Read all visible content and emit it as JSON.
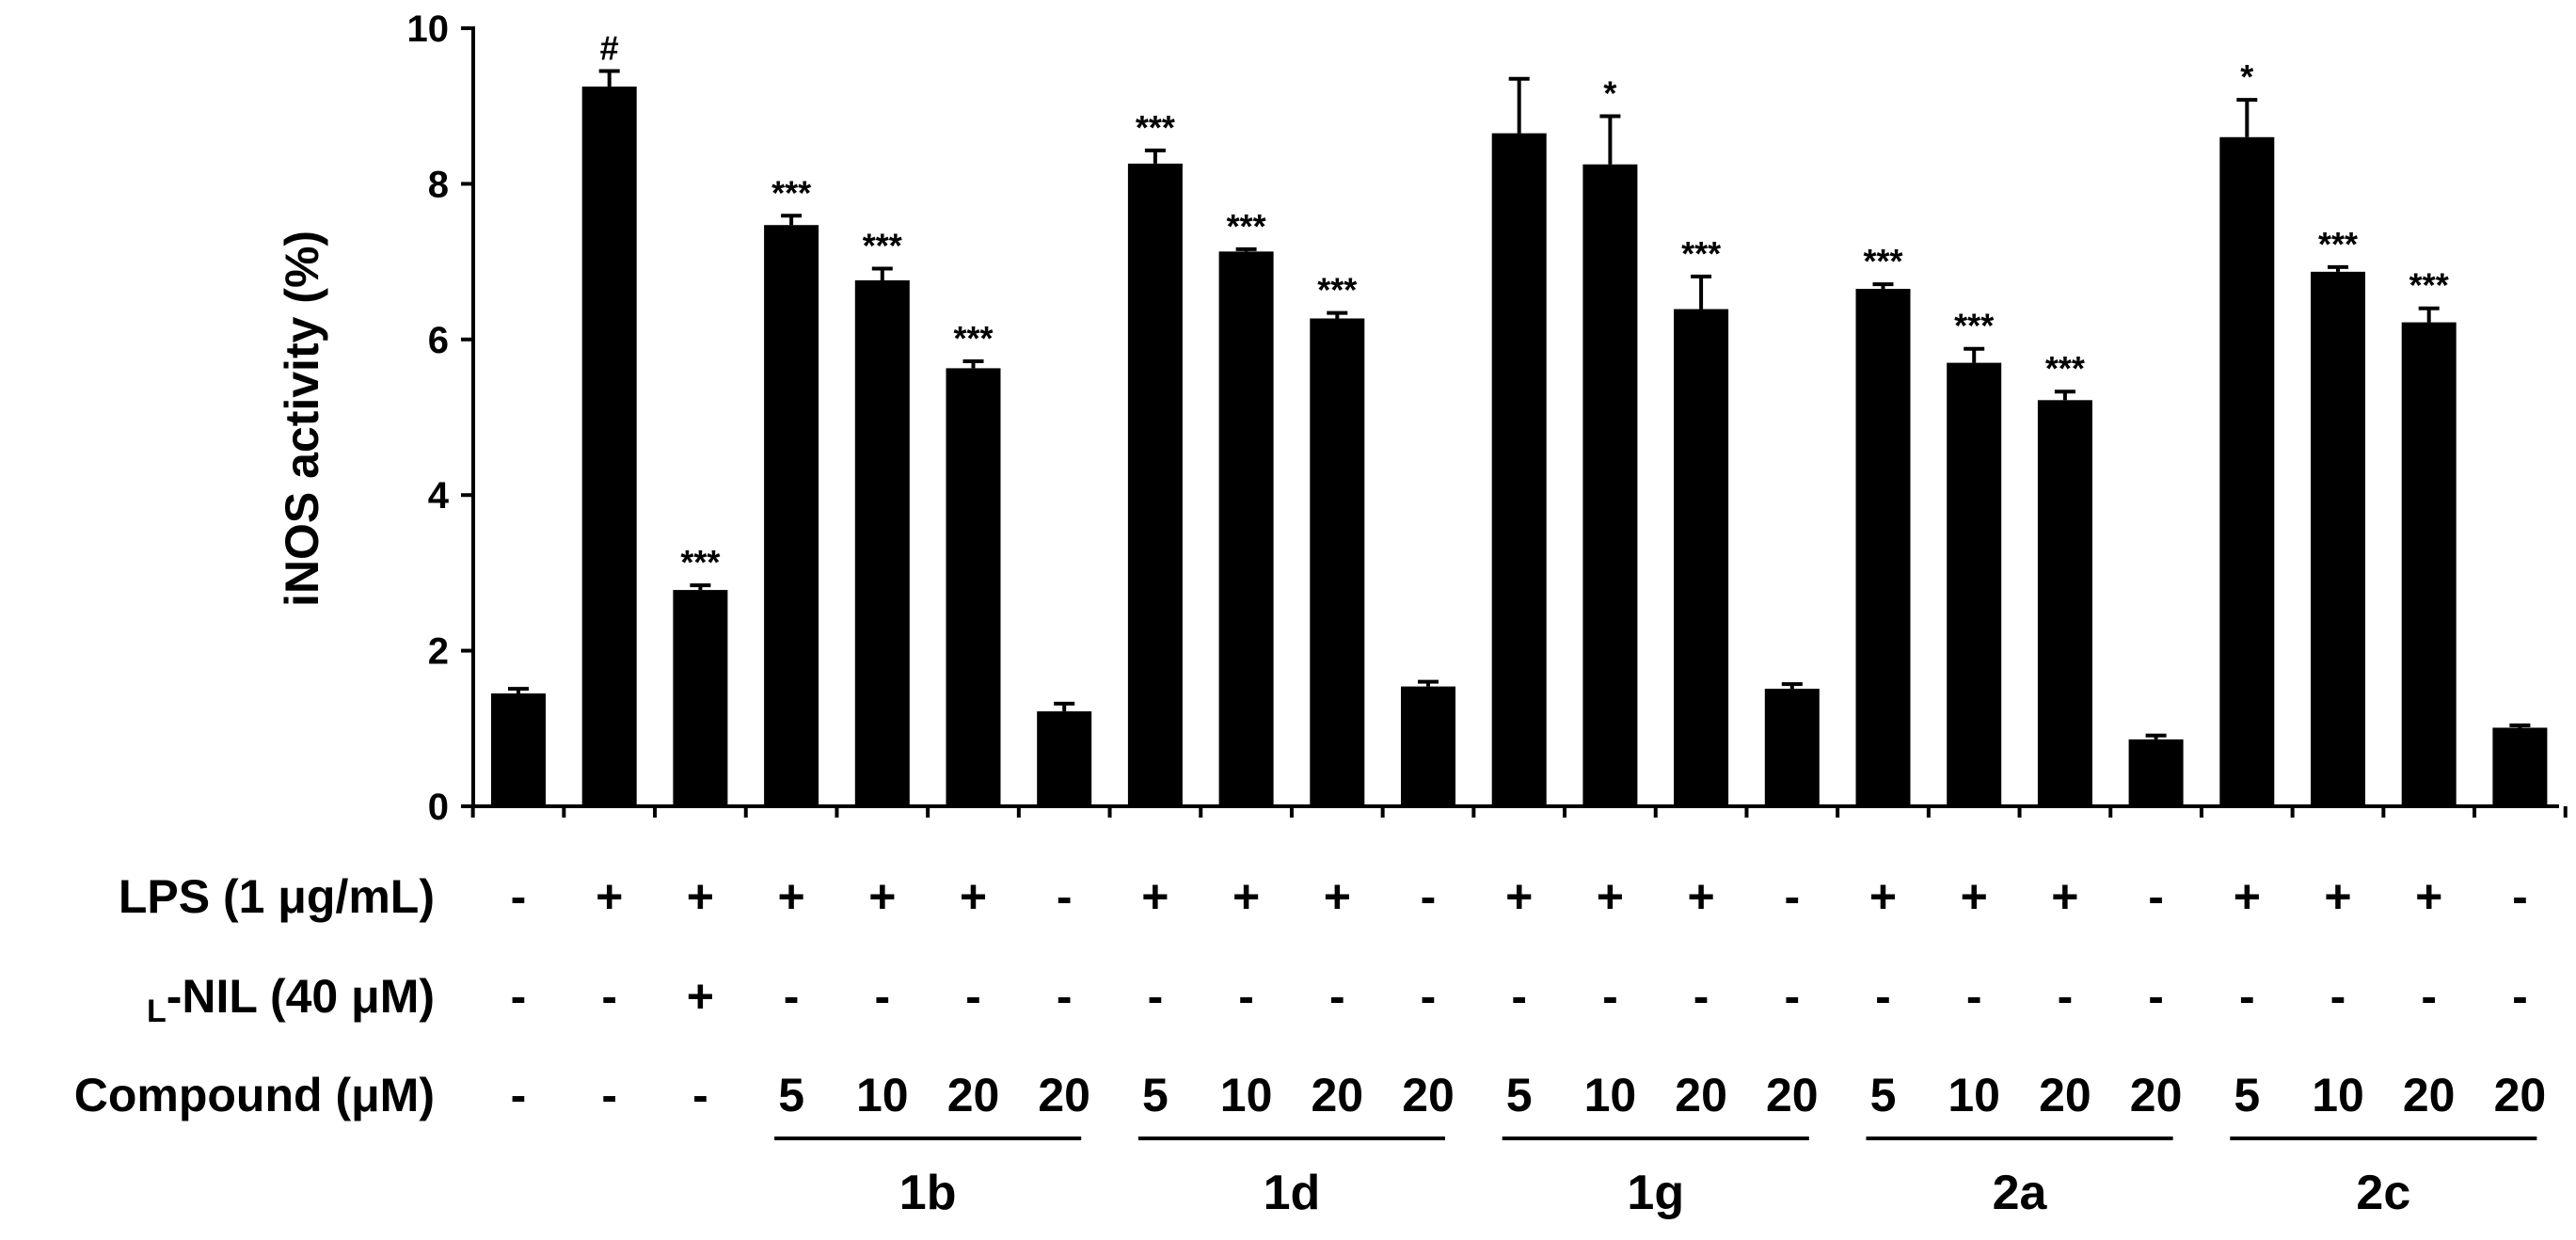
{
  "chart_data": {
    "type": "bar",
    "ylabel": "iNOS activity (%)",
    "ylim": [
      0,
      10
    ],
    "yticks": [
      "0",
      "2",
      "4",
      "6",
      "8",
      "10"
    ],
    "values": [
      1.45,
      9.25,
      2.78,
      7.47,
      6.76,
      5.63,
      1.22,
      8.26,
      7.13,
      6.27,
      1.54,
      8.65,
      8.25,
      6.39,
      1.51,
      6.65,
      5.7,
      5.22,
      0.86,
      8.6,
      6.87,
      6.22,
      1.01
    ],
    "errors": [
      0.06,
      0.2,
      0.06,
      0.12,
      0.15,
      0.09,
      0.1,
      0.17,
      0.03,
      0.07,
      0.06,
      0.7,
      0.62,
      0.42,
      0.06,
      0.06,
      0.18,
      0.11,
      0.05,
      0.48,
      0.06,
      0.18,
      0.03
    ],
    "significance": [
      "",
      "#",
      "***",
      "***",
      "***",
      "***",
      "",
      "***",
      "***",
      "***",
      "",
      "",
      "*",
      "***",
      "",
      "***",
      "***",
      "***",
      "",
      "*",
      "***",
      "***",
      ""
    ],
    "rows": [
      {
        "label": "LPS (1 μg/mL)",
        "values": [
          "-",
          "+",
          "+",
          "+",
          "+",
          "+",
          "-",
          "+",
          "+",
          "+",
          "-",
          "+",
          "+",
          "+",
          "-",
          "+",
          "+",
          "+",
          "-",
          "+",
          "+",
          "+",
          "-"
        ]
      },
      {
        "label_sub": "L",
        "label": "-NIL (40 μM)",
        "values": [
          "-",
          "-",
          "+",
          "-",
          "-",
          "-",
          "-",
          "-",
          "-",
          "-",
          "-",
          "-",
          "-",
          "-",
          "-",
          "-",
          "-",
          "-",
          "-",
          "-",
          "-",
          "-",
          "-"
        ]
      },
      {
        "label": "Compound (μM)",
        "values": [
          "-",
          "-",
          "-",
          "5",
          "10",
          "20",
          "20",
          "5",
          "10",
          "20",
          "20",
          "5",
          "10",
          "20",
          "20",
          "5",
          "10",
          "20",
          "20",
          "5",
          "10",
          "20",
          "20"
        ]
      }
    ],
    "groups": [
      {
        "label": "1b",
        "start": 3,
        "end": 6
      },
      {
        "label": "1d",
        "start": 7,
        "end": 10
      },
      {
        "label": "1g",
        "start": 11,
        "end": 14
      },
      {
        "label": "2a",
        "start": 15,
        "end": 18
      },
      {
        "label": "2c",
        "start": 19,
        "end": 22
      }
    ]
  }
}
